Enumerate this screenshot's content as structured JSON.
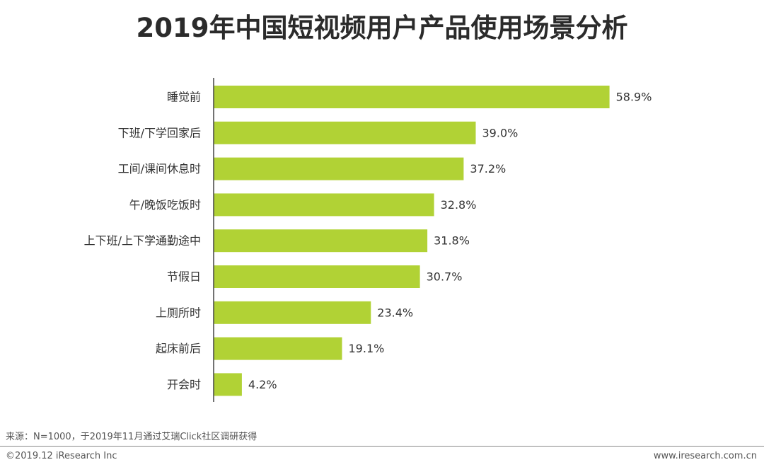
{
  "chart_data": {
    "type": "bar",
    "orientation": "horizontal",
    "title": "2019年中国短视频用户产品使用场景分析",
    "categories": [
      "睡觉前",
      "下班/下学回家后",
      "工间/课间休息时",
      "午/晚饭吃饭时",
      "上下班/上下学通勤途中",
      "节假日",
      "上厕所时",
      "起床前后",
      "开会时"
    ],
    "values": [
      58.9,
      39.0,
      37.2,
      32.8,
      31.8,
      30.7,
      23.4,
      19.1,
      4.2
    ],
    "value_labels": [
      "58.9%",
      "39.0%",
      "37.2%",
      "32.8%",
      "31.8%",
      "30.7%",
      "23.4%",
      "19.1%",
      "4.2%"
    ],
    "unit": "%",
    "xlim": [
      0,
      60
    ],
    "grid": false,
    "legend": "none",
    "bar_color": "#b1d235"
  },
  "footer": {
    "source": "来源：N=1000，于2019年11月通过艾瑞Click社区调研获得",
    "copyright": "©2019.12 iResearch Inc",
    "website": "www.iresearch.com.cn"
  }
}
